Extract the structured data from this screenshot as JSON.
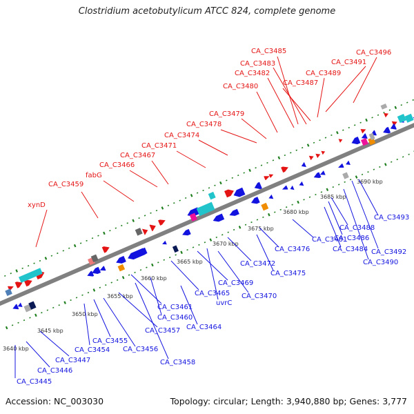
{
  "title": "Clostridium acetobutylicum ATCC 824, complete genome",
  "footer": {
    "accession": "Accession: NC_003030",
    "summary": "Topology: circular; Length: 3,940,880 bp; Genes: 3,777"
  },
  "colors": {
    "forward": "#e51414",
    "reverse": "#1313e0",
    "backbone": "#808080",
    "ticks": "#1f7f1f",
    "cyan": "#22c4cc",
    "orange": "#f08c00",
    "magenta": "#ee1199",
    "gray": "#aaaaaa",
    "olive": "#6f8f22",
    "steel": "#4f7fb7",
    "navy": "#0b1a55",
    "pink": "#ee7a7a",
    "dkgray": "#666666"
  },
  "scale_labels": [
    "3640 kbp",
    "3645 kbp",
    "3650 kbp",
    "3655 kbp",
    "3660 kbp",
    "3665 kbp",
    "3670 kbp",
    "3675 kbp",
    "3680 kbp",
    "3685 kbp",
    "3690 kbp"
  ],
  "forward_genes": [
    "xynD",
    "CA_C3459",
    "fabG",
    "CA_C3466",
    "CA_C3467",
    "CA_C3471",
    "CA_C3474",
    "CA_C3478",
    "CA_C3479",
    "CA_C3480",
    "CA_C3482",
    "CA_C3483",
    "CA_C3485",
    "CA_C3487",
    "CA_C3489",
    "CA_C3491",
    "CA_C3496"
  ],
  "reverse_genes": [
    "CA_C3445",
    "CA_C3446",
    "CA_C3447",
    "CA_C3454",
    "CA_C3455",
    "CA_C3456",
    "CA_C3457",
    "CA_C3458",
    "CA_C3460",
    "CA_C3461",
    "CA_C3464",
    "CA_C3465",
    "uvrC",
    "CA_C3469",
    "CA_C3470",
    "CA_C3472",
    "CA_C3475",
    "CA_C3476",
    "CA_C3481",
    "CA_C3484",
    "CA_C3486",
    "CA_C3488",
    "CA_C3490",
    "CA_C3492",
    "CA_C3493"
  ]
}
